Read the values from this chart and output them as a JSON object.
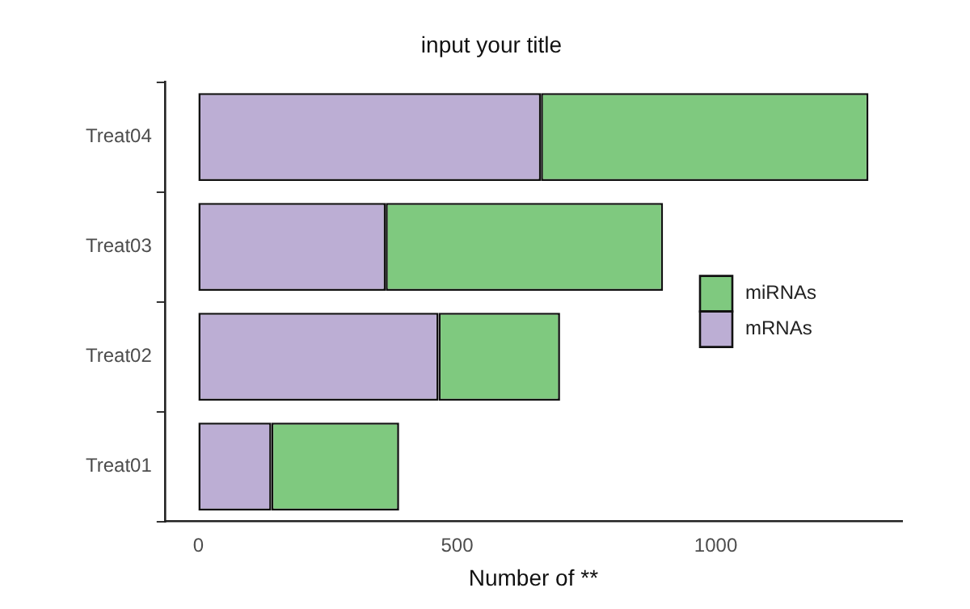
{
  "chart_data": {
    "type": "bar",
    "orientation": "horizontal",
    "stacked": true,
    "title": "input your title",
    "xlabel": "Number of **",
    "categories": [
      "Treat04",
      "Treat03",
      "Treat02",
      "Treat01"
    ],
    "series": [
      {
        "name": "mRNAs",
        "color": "#bcaed4",
        "values": [
          662,
          362,
          464,
          141
        ]
      },
      {
        "name": "miRNAs",
        "color": "#7fc97f",
        "values": [
          633,
          536,
          235,
          247
        ]
      }
    ],
    "xlim": [
      -65,
      1360
    ],
    "xticks": [
      0,
      500,
      1000
    ],
    "grid": false,
    "legend": "right"
  }
}
